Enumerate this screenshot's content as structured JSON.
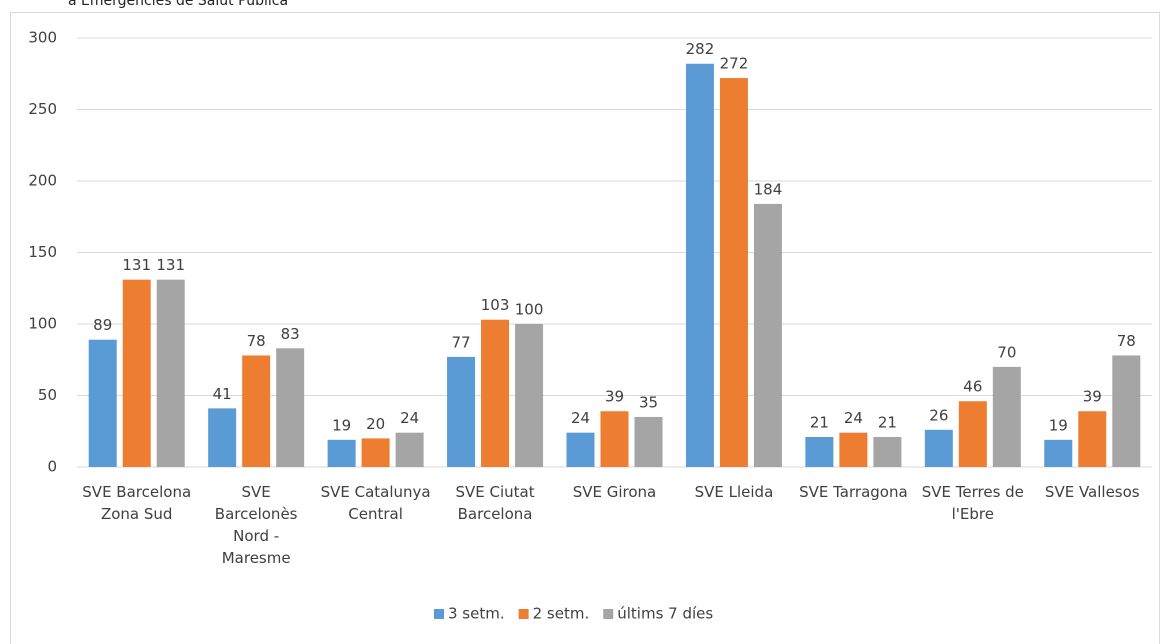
{
  "chart_data": {
    "type": "bar",
    "title": "a Emergències de Salut Pública",
    "categories": [
      "SVE Barcelona Zona Sud",
      "SVE Barcelonès Nord - Maresme",
      "SVE Catalunya Central",
      "SVE Ciutat Barcelona",
      "SVE Girona",
      "SVE Lleida",
      "SVE Tarragona",
      "SVE Terres de l'Ebre",
      "SVE Vallesos"
    ],
    "series": [
      {
        "name": "3 setm.",
        "color": "#5b9bd5",
        "values": [
          89,
          41,
          19,
          77,
          24,
          282,
          21,
          26,
          19
        ]
      },
      {
        "name": "2 setm.",
        "color": "#ed7d31",
        "values": [
          131,
          78,
          20,
          103,
          39,
          272,
          24,
          46,
          39
        ]
      },
      {
        "name": "últims 7 díes",
        "color": "#a5a5a5",
        "values": [
          131,
          83,
          24,
          100,
          35,
          184,
          21,
          70,
          78
        ]
      }
    ],
    "ylim": [
      0,
      300
    ],
    "yticks": [
      0,
      50,
      100,
      150,
      200,
      250,
      300
    ],
    "grid": true,
    "legend": "bottom"
  }
}
